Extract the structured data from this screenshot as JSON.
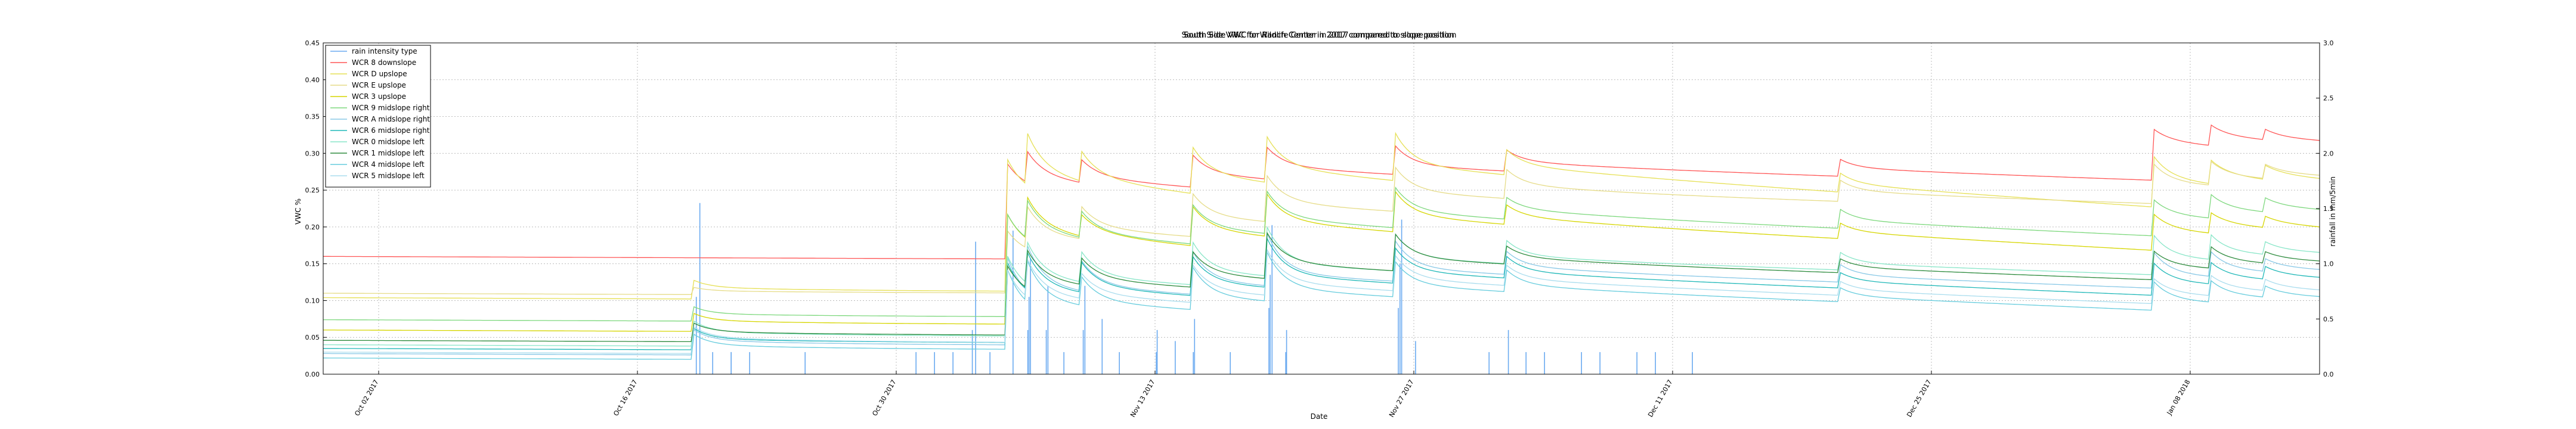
{
  "chart_data": {
    "type": "line",
    "titles": [
      "South Side VWC for Ranch Center in 2017 compared to slope position",
      "South Side VWC for Wildlife Center in 2017 compared to slope position",
      "South Side VWC for Ranch Center in 2017 compared to slope position"
    ],
    "xlabel": "Date",
    "ylabel": "VWC %",
    "ylabel_right": "rainfall in mm/5min",
    "xlim": [
      "2017-09-29",
      "2018-01-15"
    ],
    "ylim": [
      0,
      0.45
    ],
    "ylim_right": [
      0,
      3.0
    ],
    "yticks": [
      "0.00",
      "0.05",
      "0.10",
      "0.15",
      "0.20",
      "0.25",
      "0.30",
      "0.35",
      "0.40",
      "0.45"
    ],
    "yticks_right": [
      "0.0",
      "0.5",
      "1.0",
      "1.5",
      "2.0",
      "2.5",
      "3.0"
    ],
    "xticks": [
      {
        "date": "2017-10-02",
        "label": "Oct 02 2017"
      },
      {
        "date": "2017-10-16",
        "label": "Oct 16 2017"
      },
      {
        "date": "2017-10-30",
        "label": "Oct 30 2017"
      },
      {
        "date": "2017-11-13",
        "label": "Nov 13 2017"
      },
      {
        "date": "2017-11-27",
        "label": "Nov 27 2017"
      },
      {
        "date": "2017-12-11",
        "label": "Dec 11 2017"
      },
      {
        "date": "2017-12-25",
        "label": "Dec 25 2017"
      },
      {
        "date": "2018-01-08",
        "label": "Jan 08 2018"
      }
    ],
    "grid": true,
    "legend_position": "top-left",
    "events": [
      "2017-10-19",
      "2017-11-03",
      "2017-11-05",
      "2017-11-06",
      "2017-11-09",
      "2017-11-15",
      "2017-11-19",
      "2017-11-26",
      "2017-12-02",
      "2017-12-20",
      "2018-01-06",
      "2018-01-09",
      "2018-01-12"
    ],
    "rain": {
      "name": "rain intensity type",
      "color": "#6aaaf0",
      "bars": [
        {
          "date": "2017-10-19",
          "value": 1.55
        },
        {
          "date": "2017-10-19",
          "value": 0.7
        },
        {
          "date": "2017-10-20",
          "value": 0.2
        },
        {
          "date": "2017-10-21",
          "value": 0.2
        },
        {
          "date": "2017-10-21",
          "value": 0.2
        },
        {
          "date": "2017-10-22",
          "value": 0.2
        },
        {
          "date": "2017-10-25",
          "value": 0.2
        },
        {
          "date": "2017-10-31",
          "value": 0.2
        },
        {
          "date": "2017-11-01",
          "value": 0.2
        },
        {
          "date": "2017-11-02",
          "value": 0.2
        },
        {
          "date": "2017-11-03",
          "value": 1.2
        },
        {
          "date": "2017-11-03",
          "value": 0.4
        },
        {
          "date": "2017-11-04",
          "value": 0.2
        },
        {
          "date": "2017-11-05",
          "value": 1.3
        },
        {
          "date": "2017-11-06",
          "value": 1.05
        },
        {
          "date": "2017-11-06",
          "value": 0.7
        },
        {
          "date": "2017-11-06",
          "value": 0.4
        },
        {
          "date": "2017-11-07",
          "value": 0.8
        },
        {
          "date": "2017-11-07",
          "value": 0.4
        },
        {
          "date": "2017-11-08",
          "value": 0.2
        },
        {
          "date": "2017-11-09",
          "value": 0.8
        },
        {
          "date": "2017-11-09",
          "value": 0.4
        },
        {
          "date": "2017-11-10",
          "value": 0.5
        },
        {
          "date": "2017-11-11",
          "value": 0.2
        },
        {
          "date": "2017-11-13",
          "value": 0.4
        },
        {
          "date": "2017-11-13",
          "value": 0.2
        },
        {
          "date": "2017-11-14",
          "value": 0.3
        },
        {
          "date": "2017-11-15",
          "value": 0.5
        },
        {
          "date": "2017-11-15",
          "value": 0.2
        },
        {
          "date": "2017-11-17",
          "value": 0.2
        },
        {
          "date": "2017-11-19",
          "value": 1.35
        },
        {
          "date": "2017-11-19",
          "value": 0.9
        },
        {
          "date": "2017-11-19",
          "value": 0.6
        },
        {
          "date": "2017-11-20",
          "value": 0.4
        },
        {
          "date": "2017-11-20",
          "value": 0.2
        },
        {
          "date": "2017-11-26",
          "value": 1.4
        },
        {
          "date": "2017-11-26",
          "value": 1.0
        },
        {
          "date": "2017-11-26",
          "value": 0.6
        },
        {
          "date": "2017-11-27",
          "value": 0.3
        },
        {
          "date": "2017-12-01",
          "value": 0.2
        },
        {
          "date": "2017-12-02",
          "value": 0.4
        },
        {
          "date": "2017-12-03",
          "value": 0.2
        },
        {
          "date": "2017-12-04",
          "value": 0.2
        },
        {
          "date": "2017-12-06",
          "value": 0.2
        },
        {
          "date": "2017-12-07",
          "value": 0.2
        },
        {
          "date": "2017-12-09",
          "value": 0.2
        },
        {
          "date": "2017-12-10",
          "value": 0.2
        },
        {
          "date": "2017-12-12",
          "value": 0.2
        }
      ]
    },
    "series": [
      {
        "name": "WCR 8 downslope",
        "color": "#ff5555",
        "style": "solid",
        "base": 0.16,
        "final": 0.35,
        "jumps": [
          0.0,
          0.0,
          0.1,
          0.02,
          0.012,
          0.02,
          0.02,
          0.014,
          0.014,
          0.012,
          0.055,
          0.015,
          0.005
        ],
        "spikes": [
          0.0,
          0.0,
          0.03,
          0.025,
          0.02,
          0.025,
          0.025,
          0.025,
          0.015,
          0.012,
          0.015,
          0.015,
          0.01
        ]
      },
      {
        "name": "WCR D upslope",
        "color": "#e6e055",
        "style": "solid",
        "base": 0.104,
        "final": 0.27,
        "jumps": [
          0.016,
          0.0,
          0.14,
          0.035,
          0.012,
          0.03,
          0.025,
          0.025,
          0.015,
          0.012,
          0.04,
          0.015,
          0.01
        ],
        "spikes": [
          0.01,
          0.0,
          0.04,
          0.04,
          0.03,
          0.035,
          0.04,
          0.04,
          0.02,
          0.015,
          0.03,
          0.02,
          0.01
        ]
      },
      {
        "name": "WCR E upslope",
        "color": "#e6dc88",
        "style": "solid",
        "base": 0.11,
        "final": 0.305,
        "jumps": [
          0.005,
          0.0,
          0.055,
          0.03,
          0.02,
          0.03,
          0.03,
          0.03,
          0.02,
          0.015,
          0.03,
          0.015,
          0.01
        ],
        "spikes": [
          0.005,
          0.0,
          0.03,
          0.03,
          0.025,
          0.03,
          0.035,
          0.03,
          0.02,
          0.015,
          0.025,
          0.02,
          0.01
        ]
      },
      {
        "name": "WCR 3 upslope",
        "color": "#d6d600",
        "style": "solid",
        "base": 0.06,
        "final": 0.21,
        "jumps": [
          0.015,
          0.0,
          0.11,
          0.03,
          0.01,
          0.025,
          0.025,
          0.025,
          0.012,
          0.01,
          0.03,
          0.015,
          0.008
        ],
        "spikes": [
          0.01,
          0.0,
          0.04,
          0.03,
          0.02,
          0.03,
          0.035,
          0.03,
          0.015,
          0.012,
          0.02,
          0.015,
          0.008
        ]
      },
      {
        "name": "WCR 9 midslope right",
        "color": "#7dd87d",
        "style": "solid",
        "base": 0.074,
        "final": 0.245,
        "jumps": [
          0.01,
          0.0,
          0.1,
          0.025,
          0.012,
          0.025,
          0.025,
          0.025,
          0.015,
          0.012,
          0.03,
          0.015,
          0.01
        ],
        "spikes": [
          0.01,
          0.0,
          0.04,
          0.03,
          0.025,
          0.03,
          0.035,
          0.03,
          0.015,
          0.015,
          0.02,
          0.02,
          0.01
        ]
      },
      {
        "name": "WCR A midslope right",
        "color": "#88c8e6",
        "style": "solid",
        "base": 0.028,
        "final": 0.16,
        "jumps": [
          0.02,
          0.0,
          0.06,
          0.025,
          0.012,
          0.02,
          0.02,
          0.02,
          0.012,
          0.01,
          0.02,
          0.012,
          0.008
        ],
        "spikes": [
          0.015,
          0.0,
          0.06,
          0.04,
          0.03,
          0.04,
          0.055,
          0.035,
          0.02,
          0.015,
          0.03,
          0.025,
          0.01
        ]
      },
      {
        "name": "WCR 6 midslope right",
        "color": "#20b8b8",
        "style": "solid",
        "base": 0.035,
        "final": 0.14,
        "jumps": [
          0.015,
          0.0,
          0.06,
          0.02,
          0.012,
          0.02,
          0.02,
          0.018,
          0.01,
          0.01,
          0.02,
          0.012,
          0.008
        ],
        "spikes": [
          0.015,
          0.0,
          0.05,
          0.035,
          0.03,
          0.035,
          0.05,
          0.03,
          0.02,
          0.012,
          0.025,
          0.02,
          0.01
        ]
      },
      {
        "name": "WCR 0 midslope left",
        "color": "#88e6c8",
        "style": "solid",
        "base": 0.04,
        "final": 0.19,
        "jumps": [
          0.02,
          0.0,
          0.06,
          0.025,
          0.012,
          0.02,
          0.02,
          0.02,
          0.012,
          0.01,
          0.025,
          0.012,
          0.008
        ],
        "spikes": [
          0.015,
          0.0,
          0.05,
          0.035,
          0.03,
          0.04,
          0.05,
          0.03,
          0.02,
          0.015,
          0.03,
          0.025,
          0.01
        ]
      },
      {
        "name": "WCR 1 midslope left",
        "color": "#2e8b3e",
        "style": "solid",
        "base": 0.046,
        "final": 0.17,
        "jumps": [
          0.014,
          0.0,
          0.055,
          0.025,
          0.012,
          0.02,
          0.025,
          0.02,
          0.01,
          0.008,
          0.02,
          0.012,
          0.008
        ],
        "spikes": [
          0.012,
          0.0,
          0.04,
          0.03,
          0.025,
          0.03,
          0.04,
          0.03,
          0.015,
          0.012,
          0.02,
          0.02,
          0.008
        ]
      },
      {
        "name": "WCR 4 midslope left",
        "color": "#66ccdd",
        "style": "solid",
        "base": 0.022,
        "final": 0.11,
        "jumps": [
          0.02,
          0.0,
          0.05,
          0.02,
          0.01,
          0.02,
          0.02,
          0.018,
          0.01,
          0.008,
          0.015,
          0.012,
          0.006
        ],
        "spikes": [
          0.015,
          0.0,
          0.06,
          0.04,
          0.03,
          0.04,
          0.05,
          0.03,
          0.02,
          0.012,
          0.025,
          0.02,
          0.01
        ]
      },
      {
        "name": "WCR 5 midslope left",
        "color": "#aaddee",
        "style": "solid",
        "base": 0.03,
        "final": 0.12,
        "jumps": [
          0.022,
          0.0,
          0.05,
          0.02,
          0.01,
          0.018,
          0.02,
          0.018,
          0.01,
          0.008,
          0.015,
          0.012,
          0.006
        ],
        "spikes": [
          0.015,
          0.0,
          0.05,
          0.035,
          0.025,
          0.035,
          0.045,
          0.03,
          0.018,
          0.012,
          0.02,
          0.018,
          0.01
        ]
      }
    ]
  }
}
